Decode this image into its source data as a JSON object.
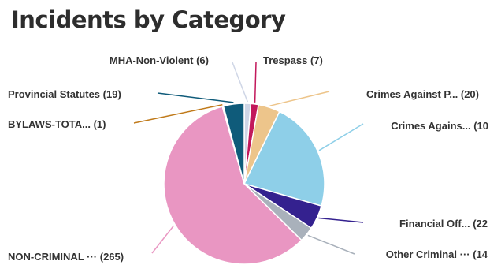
{
  "chart_data": {
    "type": "pie",
    "title": "Incidents by Category",
    "slices": [
      {
        "name": "MHA-Non-Violent",
        "value": 6,
        "label": "MHA-Non-Violent (6)",
        "color": "#cfd6e6"
      },
      {
        "name": "Trespass",
        "value": 7,
        "label": "Trespass (7)",
        "color": "#c2185b"
      },
      {
        "name": "Crimes Against P...",
        "value": 20,
        "label": "Crimes Against P... (20)",
        "color": "#edc58b"
      },
      {
        "name": "Crimes Agains...",
        "value": 101,
        "label": "Crimes Agains... (10",
        "color": "#8ecfe8"
      },
      {
        "name": "Financial Off...",
        "value": 22,
        "label": "Financial Off... (22",
        "color": "#34218f"
      },
      {
        "name": "Other Criminal ...",
        "value": 14,
        "label": "Other Criminal ··· (14",
        "color": "#a9b1bb"
      },
      {
        "name": "NON-CRIMINAL ...",
        "value": 265,
        "label": "NON-CRIMINAL ··· (265)",
        "color": "#e996c2"
      },
      {
        "name": "BYLAWS-TOTA...",
        "value": 1,
        "label": "BYLAWS-TOTA... (1)",
        "color": "#c07a1a"
      },
      {
        "name": "Provincial Statutes",
        "value": 19,
        "label": "Provincial Statutes (19)",
        "color": "#0f5b7a"
      }
    ]
  }
}
